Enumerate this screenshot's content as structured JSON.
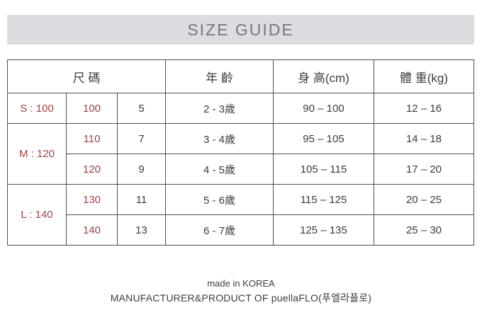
{
  "banner": {
    "title": "SIZE GUIDE"
  },
  "colors": {
    "banner_bg": "#dcdde0",
    "banner_text": "#75787e",
    "accent_red": "#a04540",
    "text_dark": "#3c3c3c",
    "table_border": "#4f4f4f"
  },
  "table": {
    "headers": {
      "size": "尺 碼",
      "age": "年 齡",
      "height": "身 高(cm)",
      "weight": "體 重(kg)"
    },
    "rows": [
      {
        "group": "S : 100",
        "size": "100",
        "num": "5",
        "age": "2 - 3歲",
        "height": "90 – 100",
        "weight": "12 – 16"
      },
      {
        "group": "M : 120",
        "size": "110",
        "num": "7",
        "age": "3 - 4歲",
        "height": "95 – 105",
        "weight": "14 – 18"
      },
      {
        "size": "120",
        "num": "9",
        "age": "4 - 5歲",
        "height": "105 – 115",
        "weight": "17 – 20"
      },
      {
        "group": "L : 140",
        "size": "130",
        "num": "11",
        "age": "5 - 6歲",
        "height": "115 – 125",
        "weight": "20 – 25"
      },
      {
        "size": "140",
        "num": "13",
        "age": "6 - 7歲",
        "height": "125 – 135",
        "weight": "25 – 30"
      }
    ]
  },
  "footer": {
    "line1": "made in KOREA",
    "line2": "MANUFACTURER&PRODUCT OF puellaFLO(푸엘라플로)"
  }
}
